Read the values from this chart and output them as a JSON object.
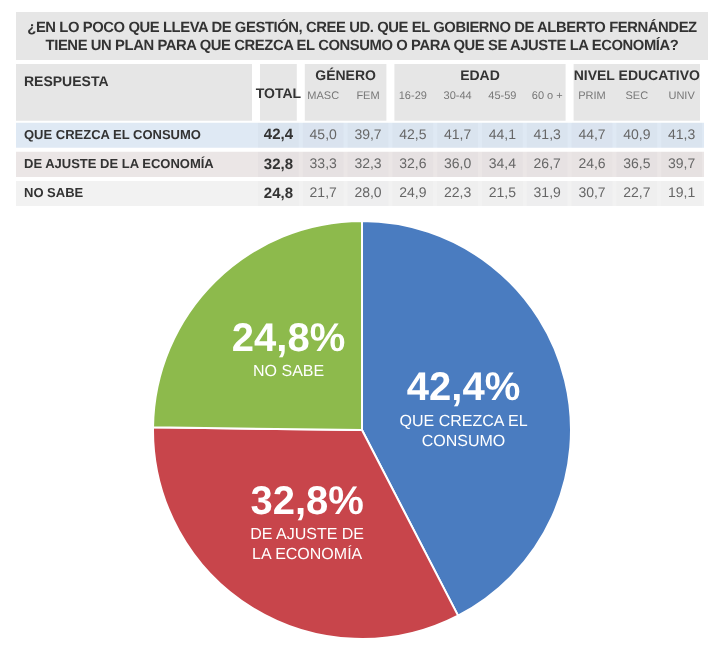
{
  "chart_data": [
    {
      "type": "heatmap",
      "title": "¿EN LO POCO QUE LLEVA DE GESTIÓN, CREE UD. QUE EL GOBIERNO DE ALBERTO FERNÁNDEZ TIENE UN PLAN PARA QUE CREZCA EL CONSUMO O PARA QUE SE AJUSTE LA ECONOMÍA?",
      "ylabel": "RESPUESTA",
      "annotations": [
        "GÉNERO",
        "EDAD",
        "NIVEL EDUCATIVO"
      ],
      "categories": [
        "TOTAL",
        "MASC",
        "FEM",
        "16-29",
        "30-44",
        "45-59",
        "60 o +",
        "PRIM",
        "SEC",
        "UNIV"
      ],
      "y_categories": [
        "QUE CREZCA EL CONSUMO",
        "DE AJUSTE DE LA ECONOMÍA",
        "NO SABE"
      ],
      "cells": [
        [
          42.4,
          45.0,
          39.7,
          42.5,
          41.7,
          44.1,
          41.3,
          44.7,
          40.9,
          41.3
        ],
        [
          32.8,
          33.3,
          32.3,
          32.6,
          36.0,
          34.4,
          26.7,
          24.6,
          36.5,
          39.7
        ],
        [
          24.8,
          21.7,
          28.0,
          24.9,
          22.3,
          21.5,
          31.9,
          30.7,
          22.7,
          19.1
        ]
      ],
      "cell_labels": [
        [
          "42,4",
          "45,0",
          "39,7",
          "42,5",
          "41,7",
          "44,1",
          "41,3",
          "44,7",
          "40,9",
          "41,3"
        ],
        [
          "32,8",
          "33,3",
          "32,3",
          "32,6",
          "36,0",
          "34,4",
          "26,7",
          "24,6",
          "36,5",
          "39,7"
        ],
        [
          "24,8",
          "21,7",
          "28,0",
          "24,9",
          "22,3",
          "21,5",
          "31,9",
          "30,7",
          "22,7",
          "19,1"
        ]
      ]
    },
    {
      "type": "pie",
      "categories": [
        "QUE CREZCA EL CONSUMO",
        "DE AJUSTE DE LA ECONOMÍA",
        "NO SABE"
      ],
      "values": [
        42.4,
        32.8,
        24.8
      ],
      "colors": [
        "#4a7cc0",
        "#c8454b",
        "#8dba4c"
      ],
      "value_labels": [
        "42,4%",
        "32,8%",
        "24,8%"
      ],
      "legend": false
    }
  ]
}
